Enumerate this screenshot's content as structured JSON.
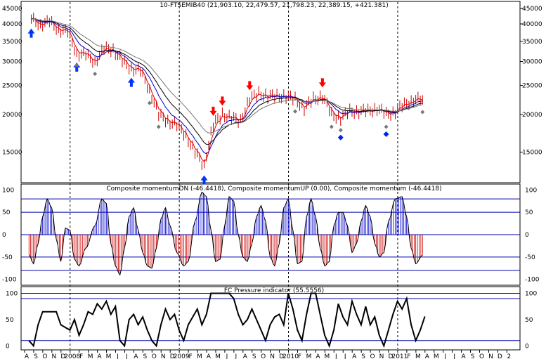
{
  "title": "10-FTSEMIB40 (21,903.10, 22,479.57, 21,798.23, 22,389.15, +421.381)",
  "colors": {
    "price_bar": "#cc0000",
    "ma_red": "#dd0000",
    "ma_blue": "#0000cc",
    "ma_black": "#000000",
    "ma_grey": "#777777",
    "hline": "#0000aa",
    "momentum_up": "#0000cc",
    "momentum_down": "#cc0000",
    "arrow_up": "#0033ff",
    "arrow_down": "#ff0000",
    "marker_grey": "#777777",
    "marker_blue": "#0022ee"
  },
  "chart_data": [
    {
      "type": "line",
      "name": "price",
      "title": "10-FTSEMIB40 (21,903.10, 22,479.57, 21,798.23, 22,389.15, +421.381)",
      "y_scale": "log",
      "ylim": [
        12000,
        46000
      ],
      "y_ticks": [
        15000,
        20000,
        25000,
        30000,
        35000,
        40000,
        45000
      ],
      "y_tick_labels": [
        "15000",
        "20000",
        "25000",
        "30000",
        "35000",
        "40000",
        "45000"
      ],
      "close_points": [
        [
          "2007-08",
          41500
        ],
        [
          "2007-09",
          40000
        ],
        [
          "2007-10",
          40500
        ],
        [
          "2007-11",
          38500
        ],
        [
          "2007-12",
          37500
        ],
        [
          "2008-01",
          32000
        ],
        [
          "2008-02",
          31500
        ],
        [
          "2008-03",
          30000
        ],
        [
          "2008-04",
          33000
        ],
        [
          "2008-05",
          33000
        ],
        [
          "2008-06",
          30000
        ],
        [
          "2008-07",
          28500
        ],
        [
          "2008-08",
          28000
        ],
        [
          "2008-09",
          24000
        ],
        [
          "2008-10",
          20000
        ],
        [
          "2008-11",
          19000
        ],
        [
          "2008-12",
          18500
        ],
        [
          "2009-01",
          17000
        ],
        [
          "2009-02",
          15000
        ],
        [
          "2009-03",
          13500
        ],
        [
          "2009-04",
          18500
        ],
        [
          "2009-05",
          20000
        ],
        [
          "2009-06",
          19500
        ],
        [
          "2009-07",
          19000
        ],
        [
          "2009-08",
          22500
        ],
        [
          "2009-09",
          23500
        ],
        [
          "2009-10",
          23000
        ],
        [
          "2009-11",
          23000
        ],
        [
          "2009-12",
          23000
        ],
        [
          "2010-01",
          22500
        ],
        [
          "2010-02",
          21000
        ],
        [
          "2010-03",
          22500
        ],
        [
          "2010-04",
          23000
        ],
        [
          "2010-05",
          20000
        ],
        [
          "2010-06",
          19500
        ],
        [
          "2010-07",
          20500
        ],
        [
          "2010-08",
          20500
        ],
        [
          "2010-09",
          20500
        ],
        [
          "2010-10",
          21000
        ],
        [
          "2010-11",
          20000
        ],
        [
          "2010-12",
          20500
        ],
        [
          "2011-01",
          21500
        ],
        [
          "2011-02",
          22500
        ],
        [
          "2011-03",
          22389
        ]
      ],
      "markers": {
        "up_arrows": [
          "2007-08",
          "2008-01",
          "2008-07",
          "2009-03"
        ],
        "down_arrows": [
          "2009-04",
          "2009-05",
          "2009-08",
          "2010-04"
        ],
        "grey_diamonds": [
          "2008-01",
          "2008-03",
          "2008-09",
          "2008-10",
          "2010-01",
          "2010-05",
          "2010-06",
          "2010-11",
          "2011-03"
        ],
        "blue_diamonds": [
          "2010-06",
          "2010-11"
        ]
      },
      "moving_averages": [
        "red",
        "blue",
        "black",
        "grey"
      ]
    },
    {
      "type": "bar",
      "title": "Composite momentumDN (-46.4418), Composite momentumUP (0.00), Composite momentum (-46.4418)",
      "series": [
        {
          "name": "Composite momentumDN",
          "last": -46.4418
        },
        {
          "name": "Composite momentumUP",
          "last": 0.0
        },
        {
          "name": "Composite momentum",
          "last": -46.4418
        }
      ],
      "ylim": [
        -110,
        110
      ],
      "y_ticks": [
        -100,
        -50,
        0,
        50,
        100
      ],
      "y_tick_labels": [
        "-100",
        "-50",
        "0",
        "50",
        "100"
      ],
      "hlines": [
        -80,
        -50,
        0,
        50,
        80
      ],
      "points": [
        [
          "2007-08",
          -45
        ],
        [
          "2007-08",
          -65
        ],
        [
          "2007-09",
          -20
        ],
        [
          "2007-09",
          40
        ],
        [
          "2007-10",
          80
        ],
        [
          "2007-10",
          60
        ],
        [
          "2007-11",
          -10
        ],
        [
          "2007-11",
          -60
        ],
        [
          "2007-12",
          15
        ],
        [
          "2007-12",
          10
        ],
        [
          "2008-01",
          -55
        ],
        [
          "2008-01",
          -70
        ],
        [
          "2008-02",
          -30
        ],
        [
          "2008-03",
          20
        ],
        [
          "2008-04",
          80
        ],
        [
          "2008-04",
          70
        ],
        [
          "2008-05",
          -20
        ],
        [
          "2008-05",
          -70
        ],
        [
          "2008-06",
          -90
        ],
        [
          "2008-06",
          -30
        ],
        [
          "2008-07",
          40
        ],
        [
          "2008-07",
          60
        ],
        [
          "2008-08",
          10
        ],
        [
          "2008-08",
          -40
        ],
        [
          "2008-09",
          -70
        ],
        [
          "2008-09",
          -75
        ],
        [
          "2008-10",
          -30
        ],
        [
          "2008-10",
          35
        ],
        [
          "2008-11",
          60
        ],
        [
          "2008-11",
          20
        ],
        [
          "2008-12",
          -40
        ],
        [
          "2009-01",
          -70
        ],
        [
          "2009-01",
          -60
        ],
        [
          "2009-02",
          30
        ],
        [
          "2009-03",
          95
        ],
        [
          "2009-03",
          85
        ],
        [
          "2009-04",
          10
        ],
        [
          "2009-04",
          -60
        ],
        [
          "2009-05",
          -55
        ],
        [
          "2009-05",
          20
        ],
        [
          "2009-06",
          85
        ],
        [
          "2009-06",
          75
        ],
        [
          "2009-07",
          0
        ],
        [
          "2009-07",
          -50
        ],
        [
          "2009-08",
          -60
        ],
        [
          "2009-08",
          -20
        ],
        [
          "2009-09",
          40
        ],
        [
          "2009-09",
          65
        ],
        [
          "2009-10",
          30
        ],
        [
          "2009-10",
          -50
        ],
        [
          "2009-11",
          -70
        ],
        [
          "2009-11",
          -20
        ],
        [
          "2009-12",
          60
        ],
        [
          "2009-12",
          80
        ],
        [
          "2010-01",
          10
        ],
        [
          "2010-01",
          -65
        ],
        [
          "2010-02",
          -60
        ],
        [
          "2010-02",
          40
        ],
        [
          "2010-03",
          80
        ],
        [
          "2010-03",
          40
        ],
        [
          "2010-04",
          -30
        ],
        [
          "2010-04",
          -70
        ],
        [
          "2010-05",
          -60
        ],
        [
          "2010-05",
          20
        ],
        [
          "2010-06",
          50
        ],
        [
          "2010-06",
          50
        ],
        [
          "2010-07",
          20
        ],
        [
          "2010-07",
          -40
        ],
        [
          "2010-08",
          -20
        ],
        [
          "2010-08",
          30
        ],
        [
          "2010-09",
          65
        ],
        [
          "2010-09",
          40
        ],
        [
          "2010-10",
          -20
        ],
        [
          "2010-10",
          -50
        ],
        [
          "2010-11",
          -40
        ],
        [
          "2010-11",
          30
        ],
        [
          "2010-12",
          80
        ],
        [
          "2011-01",
          85
        ],
        [
          "2011-01",
          40
        ],
        [
          "2011-02",
          -30
        ],
        [
          "2011-02",
          -65
        ],
        [
          "2011-03",
          -46
        ]
      ]
    },
    {
      "type": "line",
      "title": "FC Pressure indicator (55.5556)",
      "last": 55.5556,
      "ylim": [
        -5,
        110
      ],
      "y_ticks": [
        0,
        50,
        100
      ],
      "y_tick_labels": [
        "0",
        "50",
        "100"
      ],
      "hlines": [
        10,
        90,
        100
      ],
      "points": [
        [
          "2007-08",
          10
        ],
        [
          "2007-08",
          0
        ],
        [
          "2007-09",
          40
        ],
        [
          "2007-09",
          65
        ],
        [
          "2007-10",
          65
        ],
        [
          "2007-10",
          65
        ],
        [
          "2007-11",
          65
        ],
        [
          "2007-11",
          40
        ],
        [
          "2007-12",
          35
        ],
        [
          "2007-12",
          30
        ],
        [
          "2008-01",
          50
        ],
        [
          "2008-01",
          20
        ],
        [
          "2008-02",
          40
        ],
        [
          "2008-02",
          65
        ],
        [
          "2008-03",
          60
        ],
        [
          "2008-03",
          80
        ],
        [
          "2008-04",
          70
        ],
        [
          "2008-04",
          85
        ],
        [
          "2008-05",
          60
        ],
        [
          "2008-05",
          75
        ],
        [
          "2008-06",
          10
        ],
        [
          "2008-06",
          0
        ],
        [
          "2008-07",
          50
        ],
        [
          "2008-07",
          60
        ],
        [
          "2008-08",
          40
        ],
        [
          "2008-08",
          55
        ],
        [
          "2008-09",
          30
        ],
        [
          "2008-09",
          10
        ],
        [
          "2008-10",
          0
        ],
        [
          "2008-10",
          40
        ],
        [
          "2008-11",
          70
        ],
        [
          "2008-11",
          50
        ],
        [
          "2008-12",
          60
        ],
        [
          "2008-12",
          30
        ],
        [
          "2009-01",
          10
        ],
        [
          "2009-01",
          40
        ],
        [
          "2009-02",
          55
        ],
        [
          "2009-02",
          70
        ],
        [
          "2009-03",
          40
        ],
        [
          "2009-03",
          60
        ],
        [
          "2009-04",
          100
        ],
        [
          "2009-04",
          100
        ],
        [
          "2009-05",
          100
        ],
        [
          "2009-05",
          100
        ],
        [
          "2009-06",
          100
        ],
        [
          "2009-06",
          90
        ],
        [
          "2009-07",
          60
        ],
        [
          "2009-07",
          40
        ],
        [
          "2009-08",
          50
        ],
        [
          "2009-08",
          70
        ],
        [
          "2009-09",
          50
        ],
        [
          "2009-09",
          30
        ],
        [
          "2009-10",
          10
        ],
        [
          "2009-10",
          40
        ],
        [
          "2009-11",
          55
        ],
        [
          "2009-11",
          60
        ],
        [
          "2009-12",
          40
        ],
        [
          "2009-12",
          100
        ],
        [
          "2010-01",
          70
        ],
        [
          "2010-01",
          30
        ],
        [
          "2010-02",
          10
        ],
        [
          "2010-02",
          60
        ],
        [
          "2010-03",
          100
        ],
        [
          "2010-03",
          100
        ],
        [
          "2010-04",
          60
        ],
        [
          "2010-04",
          20
        ],
        [
          "2010-05",
          0
        ],
        [
          "2010-05",
          30
        ],
        [
          "2010-06",
          80
        ],
        [
          "2010-06",
          55
        ],
        [
          "2010-07",
          40
        ],
        [
          "2010-07",
          85
        ],
        [
          "2010-08",
          60
        ],
        [
          "2010-08",
          40
        ],
        [
          "2010-09",
          75
        ],
        [
          "2010-09",
          40
        ],
        [
          "2010-10",
          55
        ],
        [
          "2010-10",
          20
        ],
        [
          "2010-11",
          0
        ],
        [
          "2010-11",
          30
        ],
        [
          "2010-12",
          60
        ],
        [
          "2010-12",
          85
        ],
        [
          "2011-01",
          70
        ],
        [
          "2011-01",
          90
        ],
        [
          "2011-02",
          40
        ],
        [
          "2011-02",
          10
        ],
        [
          "2011-03",
          30
        ],
        [
          "2011-03",
          56
        ]
      ]
    }
  ],
  "x_axis": {
    "labels": [
      "A",
      "S",
      "O",
      "N",
      "D",
      "2008",
      "F",
      "M",
      "A",
      "M",
      "J",
      "J",
      "A",
      "S",
      "O",
      "N",
      "D",
      "2009",
      "F",
      "M",
      "A",
      "M",
      "J",
      "J",
      "A",
      "S",
      "O",
      "N",
      "D",
      "2010",
      "F",
      "M",
      "A",
      "M",
      "J",
      "J",
      "A",
      "S",
      "O",
      "N",
      "D",
      "2011",
      "F",
      "M",
      "A",
      "M",
      "J",
      "J",
      "A",
      "S",
      "O",
      "N",
      "D",
      "2"
    ],
    "year_dividers": [
      "2008-01",
      "2009-01",
      "2010-01",
      "2011-01"
    ]
  }
}
